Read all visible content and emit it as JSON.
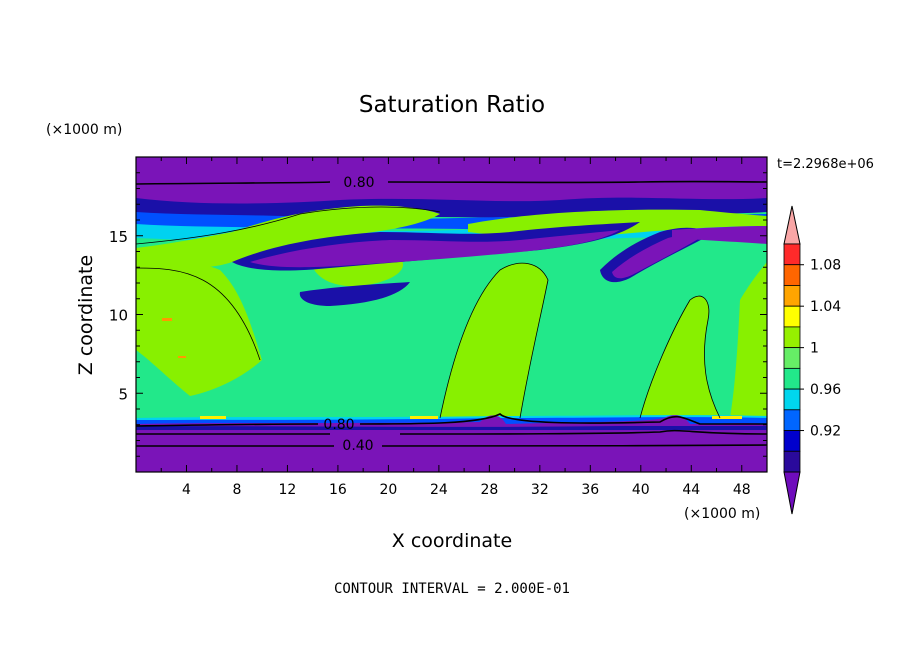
{
  "chart_data": {
    "type": "contour",
    "title": "Saturation Ratio",
    "xlabel": "X coordinate",
    "ylabel": "Z coordinate",
    "x_unit": "(×1000 m)",
    "y_unit": "(×1000 m)",
    "time_label": "t=2.2968e+06",
    "footer": "CONTOUR INTERVAL = 2.000E-01",
    "xlim": [
      0,
      50
    ],
    "ylim": [
      0,
      20
    ],
    "x_ticks": [
      "4",
      "8",
      "12",
      "16",
      "20",
      "24",
      "28",
      "32",
      "36",
      "40",
      "44",
      "48"
    ],
    "y_ticks": [
      "5",
      "10",
      "15"
    ],
    "contour_labels": [
      "0.80",
      "0.80",
      "0.40"
    ],
    "colorbar": {
      "labels": [
        "1.08",
        "1.04",
        "1",
        "0.96",
        "0.92"
      ],
      "colors": [
        "#f9a6a6",
        "#ff2a2a",
        "#ff6600",
        "#ffa500",
        "#ffff00",
        "#96f000",
        "#66ee66",
        "#22e88a",
        "#00d6ee",
        "#0066ff",
        "#0000cc",
        "#2a0a9c",
        "#6f0cbc"
      ]
    },
    "colors": {
      "purple": "#7a14b8",
      "deep_blue": "#1a10a8",
      "blue": "#0050ff",
      "cyan": "#00d2f0",
      "teal": "#00ec8c",
      "green": "#88f000",
      "yellow": "#ffee00",
      "orange": "#ff9900"
    }
  }
}
